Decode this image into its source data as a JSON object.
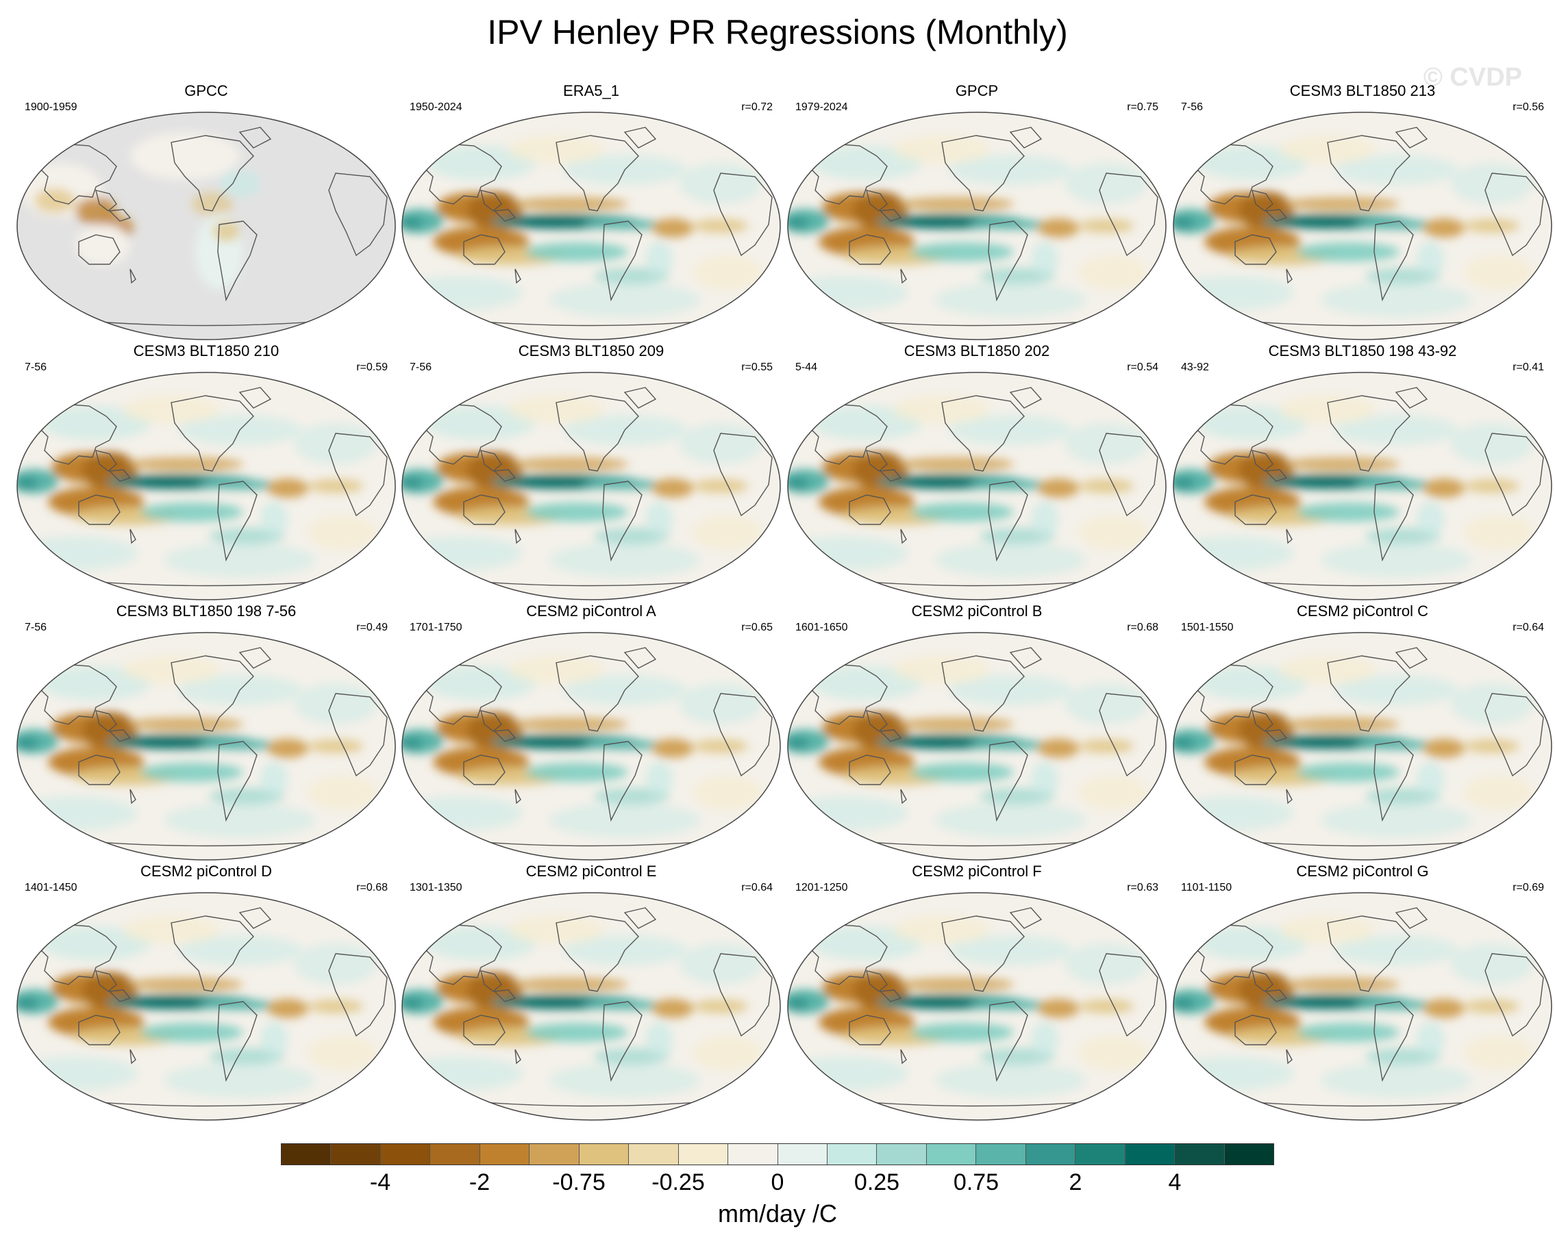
{
  "title": "IPV Henley PR Regressions (Monthly)",
  "watermark": "© CVDP",
  "panels": [
    {
      "title": "GPCC",
      "left": "1900-1959",
      "right": "",
      "style": "gpcc"
    },
    {
      "title": "ERA5_1",
      "left": "1950-2024",
      "right": "r=0.72",
      "style": "obs"
    },
    {
      "title": "GPCP",
      "left": "1979-2024",
      "right": "r=0.75",
      "style": "obs"
    },
    {
      "title": "CESM3 BLT1850 213",
      "left": "7-56",
      "right": "r=0.56",
      "style": "model"
    },
    {
      "title": "CESM3 BLT1850 210",
      "left": "7-56",
      "right": "r=0.59",
      "style": "model"
    },
    {
      "title": "CESM3 BLT1850 209",
      "left": "7-56",
      "right": "r=0.55",
      "style": "model"
    },
    {
      "title": "CESM3 BLT1850 202",
      "left": "5-44",
      "right": "r=0.54",
      "style": "model"
    },
    {
      "title": "CESM3 BLT1850 198 43-92",
      "left": "43-92",
      "right": "r=0.41",
      "style": "model"
    },
    {
      "title": "CESM3 BLT1850 198 7-56",
      "left": "7-56",
      "right": "r=0.49",
      "style": "model"
    },
    {
      "title": "CESM2 piControl A",
      "left": "1701-1750",
      "right": "r=0.65",
      "style": "model"
    },
    {
      "title": "CESM2 piControl B",
      "left": "1601-1650",
      "right": "r=0.68",
      "style": "model"
    },
    {
      "title": "CESM2 piControl C",
      "left": "1501-1550",
      "right": "r=0.64",
      "style": "model"
    },
    {
      "title": "CESM2 piControl D",
      "left": "1401-1450",
      "right": "r=0.68",
      "style": "model"
    },
    {
      "title": "CESM2 piControl E",
      "left": "1301-1350",
      "right": "r=0.64",
      "style": "model"
    },
    {
      "title": "CESM2 piControl F",
      "left": "1201-1250",
      "right": "r=0.63",
      "style": "model"
    },
    {
      "title": "CESM2 piControl G",
      "left": "1101-1150",
      "right": "r=0.69",
      "style": "model"
    }
  ],
  "colorbar": {
    "colors": [
      "#543005",
      "#6f4109",
      "#8c510a",
      "#a86a1e",
      "#bf812d",
      "#d0a258",
      "#dfc27d",
      "#ecdcaf",
      "#f5ecd2",
      "#f4f1ea",
      "#e7f2ef",
      "#c7eae5",
      "#a3d9d1",
      "#80cdc1",
      "#5ab4a9",
      "#35978f",
      "#1d8379",
      "#01665e",
      "#0d5146",
      "#003c30"
    ],
    "labels": [
      "-4",
      "-2",
      "-0.75",
      "-0.25",
      "0",
      "0.25",
      "0.75",
      "2",
      "4"
    ],
    "units": "mm/day /C"
  }
}
